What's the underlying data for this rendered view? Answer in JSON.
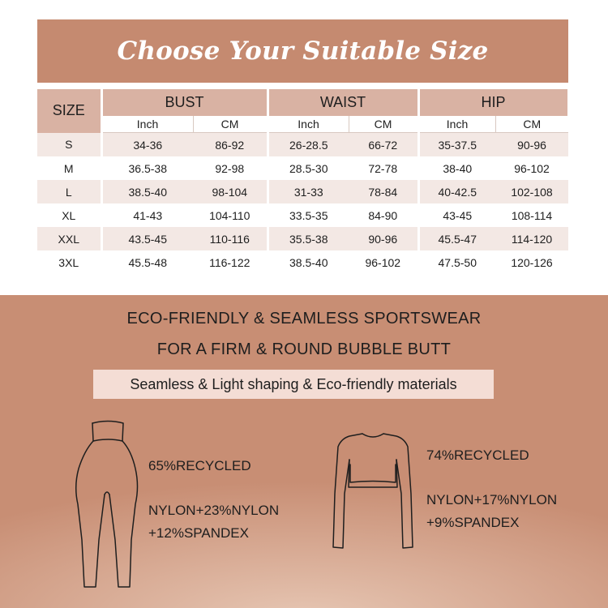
{
  "title": "Choose Your Suitable Size",
  "size_table": {
    "size_header": "SIZE",
    "groups": [
      "BUST",
      "WAIST",
      "HIP"
    ],
    "units": [
      "Inch",
      "CM",
      "Inch",
      "CM",
      "Inch",
      "CM"
    ],
    "rows": [
      [
        "S",
        "34-36",
        "86-92",
        "26-28.5",
        "66-72",
        "35-37.5",
        "90-96"
      ],
      [
        "M",
        "36.5-38",
        "92-98",
        "28.5-30",
        "72-78",
        "38-40",
        "96-102"
      ],
      [
        "L",
        "38.5-40",
        "98-104",
        "31-33",
        "78-84",
        "40-42.5",
        "102-108"
      ],
      [
        "XL",
        "41-43",
        "104-110",
        "33.5-35",
        "84-90",
        "43-45",
        "108-114"
      ],
      [
        "XXL",
        "43.5-45",
        "110-116",
        "35.5-38",
        "90-96",
        "45.5-47",
        "114-120"
      ],
      [
        "3XL",
        "45.5-48",
        "116-122",
        "38.5-40",
        "96-102",
        "47.5-50",
        "120-126"
      ]
    ]
  },
  "promo": {
    "line1": "ECO-FRIENDLY & SEAMLESS SPORTSWEAR",
    "line2": "FOR A FIRM & ROUND BUBBLE BUTT",
    "tagline": "Seamless & Light shaping & Eco-friendly materials"
  },
  "products": [
    {
      "icon": "leggings-icon",
      "recycled": "65%RECYCLED",
      "composition_1": "NYLON+23%NYLON",
      "composition_2": "+12%SPANDEX"
    },
    {
      "icon": "crop-top-icon",
      "recycled": "74%RECYCLED",
      "composition_1": "NYLON+17%NYLON",
      "composition_2": "+9%SPANDEX"
    }
  ],
  "colors": {
    "banner": "#c58a70",
    "header_cell": "#d9b2a3",
    "alt_row": "#f3e8e4",
    "lower_bg": "#c88e74",
    "pill": "#f4ddd5"
  }
}
